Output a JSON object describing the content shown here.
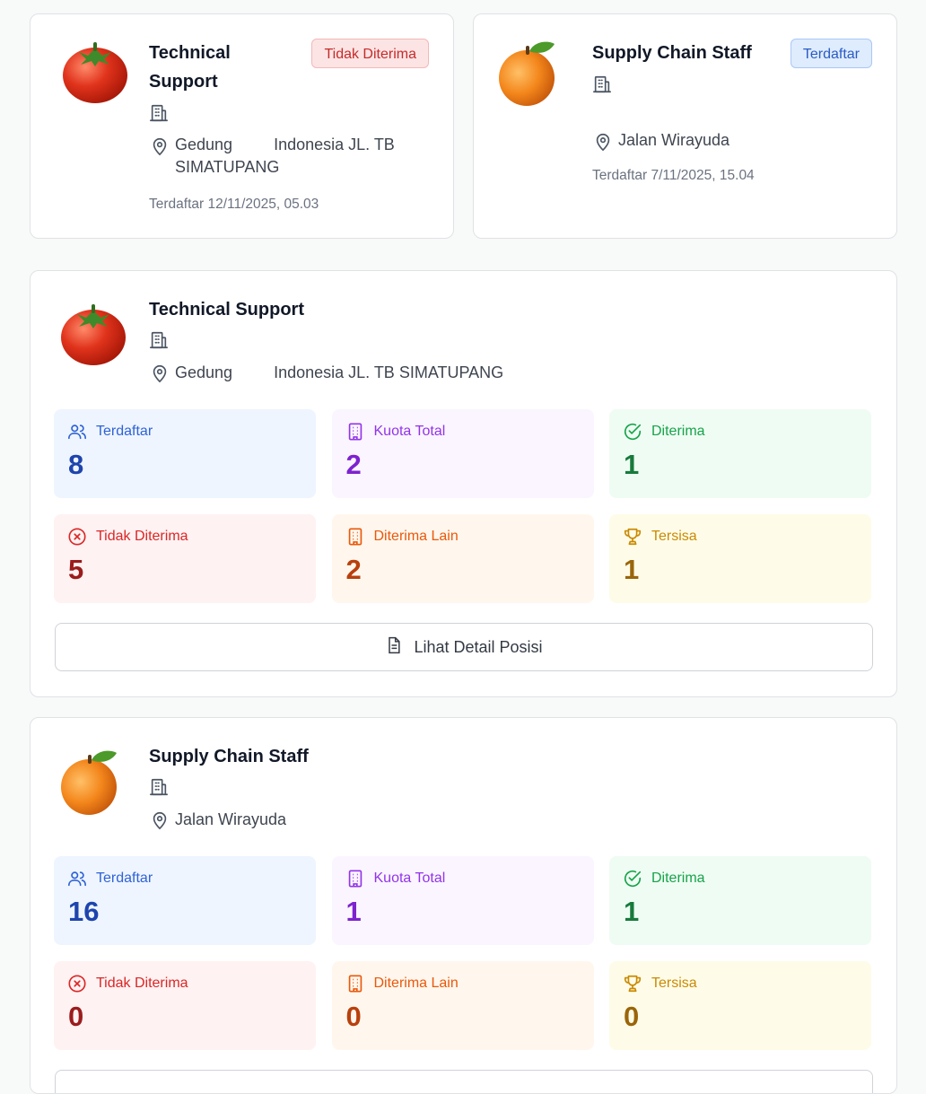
{
  "applications": [
    {
      "title": "Technical Support",
      "status": "Tidak Diterima",
      "location": [
        "Gedung",
        "Indonesia JL. TB SIMATUPANG"
      ],
      "registered": "Terdaftar 12/11/2025, 05.03"
    },
    {
      "title": "Supply Chain Staff",
      "status": "Terdaftar",
      "location": [
        "Jalan Wirayuda"
      ],
      "registered": "Terdaftar 7/11/2025, 15.04"
    }
  ],
  "positions": [
    {
      "title": "Technical Support",
      "location": [
        "Gedung",
        "Indonesia JL. TB SIMATUPANG"
      ],
      "stats": [
        {
          "label": "Terdaftar",
          "value": "8"
        },
        {
          "label": "Kuota Total",
          "value": "2"
        },
        {
          "label": "Diterima",
          "value": "1"
        },
        {
          "label": "Tidak Diterima",
          "value": "5"
        },
        {
          "label": "Diterima Lain",
          "value": "2"
        },
        {
          "label": "Tersisa",
          "value": "1"
        }
      ],
      "button": "Lihat Detail Posisi"
    },
    {
      "title": "Supply Chain Staff",
      "location": [
        "Jalan Wirayuda"
      ],
      "stats": [
        {
          "label": "Terdaftar",
          "value": "16"
        },
        {
          "label": "Kuota Total",
          "value": "1"
        },
        {
          "label": "Diterima",
          "value": "1"
        },
        {
          "label": "Tidak Diterima",
          "value": "0"
        },
        {
          "label": "Diterima Lain",
          "value": "0"
        },
        {
          "label": "Tersisa",
          "value": "0"
        }
      ]
    }
  ]
}
